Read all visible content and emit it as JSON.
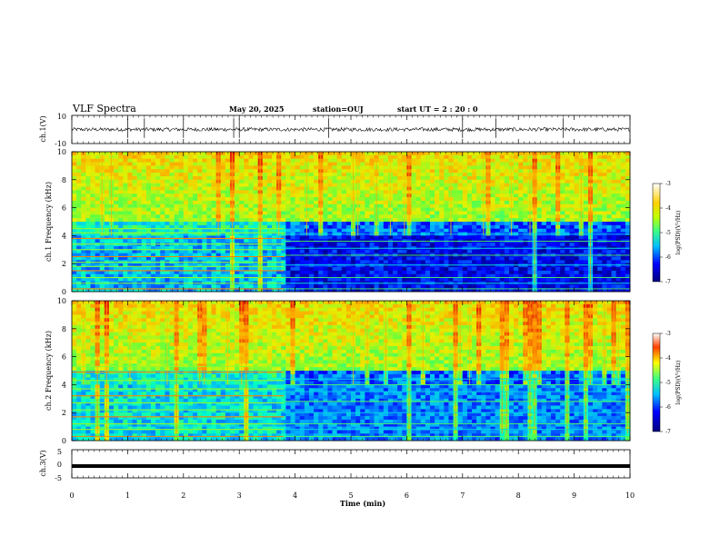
{
  "header": {
    "title": "VLF Spectra",
    "date": "May 20, 2025",
    "station": "station=OUJ",
    "start": "start  UT =   2  : 20 : 0"
  },
  "colors": {
    "low": "#00007f",
    "mid_low": "#00a0ff",
    "mid": "#3cff3c",
    "mid_high": "#ffe000",
    "high": "#e00000"
  },
  "chart_data": [
    {
      "type": "line",
      "name": "ch1-waveform",
      "ylabel": "ch.1(V)",
      "ylim": [
        -10,
        10
      ],
      "y_ticklabels": [
        "10",
        "-10"
      ],
      "xlim": [
        0,
        10
      ],
      "baseline_value": 0,
      "spike_times_min": [
        1.0,
        1.3,
        2.0,
        2.9,
        3.0,
        4.6,
        7.0,
        7.6,
        8.8
      ]
    },
    {
      "type": "heatmap",
      "name": "ch1-spectrogram",
      "ylabel": "ch.1 Frequency (kHz)",
      "xlim": [
        0,
        10
      ],
      "ylim": [
        0,
        10
      ],
      "y_ticks": [
        0,
        2,
        4,
        6,
        8,
        10
      ],
      "y_ticklabels": [
        "0",
        "2",
        "4",
        "6",
        "8",
        "10"
      ],
      "colorbar": {
        "label": "log(PSD)(V²/Hz)",
        "ticks": [
          "-3",
          "-4",
          "-5",
          "-6",
          "-7"
        ],
        "range": [
          -7,
          -3
        ]
      },
      "regime_change_time_min": 3.8,
      "line_freqs_before_khz": [
        0.2,
        0.6,
        1.0,
        1.5,
        1.8,
        2.1,
        2.5,
        3.0,
        3.4,
        3.8,
        4.2,
        4.5
      ],
      "line_freqs_after_khz": [
        0.2,
        0.6,
        1.0,
        1.9,
        2.6,
        3.1,
        3.6,
        4.1
      ]
    },
    {
      "type": "heatmap",
      "name": "ch2-spectrogram",
      "ylabel": "ch.2 Frequency (kHz)",
      "xlim": [
        0,
        10
      ],
      "ylim": [
        0,
        10
      ],
      "y_ticks": [
        0,
        2,
        4,
        6,
        8,
        10
      ],
      "y_ticklabels": [
        "0",
        "2",
        "4",
        "6",
        "8",
        "10"
      ],
      "colorbar": {
        "label": "log(PSD)(V²/Hz)",
        "ticks": [
          "-3",
          "-4",
          "-5",
          "-6",
          "-7"
        ],
        "range": [
          -7,
          -3
        ]
      },
      "regime_change_time_min": 3.8,
      "line_freqs_before_khz": [
        0.3,
        0.8,
        1.2,
        1.7,
        2.2,
        2.7,
        3.2,
        3.7,
        4.3,
        4.9,
        5.3
      ],
      "line_freqs_after_khz": [
        0.3,
        0.8,
        1.2,
        2.0,
        2.8,
        3.5,
        4.0,
        4.4
      ]
    },
    {
      "type": "line",
      "name": "ch3-waveform",
      "ylabel": "ch.3(V)",
      "ylim": [
        -5,
        5
      ],
      "y_ticks": [
        5,
        0,
        -5
      ],
      "y_ticklabels": [
        "5",
        "0",
        "-5"
      ],
      "xlim": [
        0,
        10
      ],
      "baseline_value": -0.8
    }
  ],
  "xaxis": {
    "label": "Time (min)",
    "ticks": [
      0,
      1,
      2,
      3,
      4,
      5,
      6,
      7,
      8,
      9,
      10
    ],
    "ticklabels": [
      "0",
      "1",
      "2",
      "3",
      "4",
      "5",
      "6",
      "7",
      "8",
      "9",
      "10"
    ]
  }
}
